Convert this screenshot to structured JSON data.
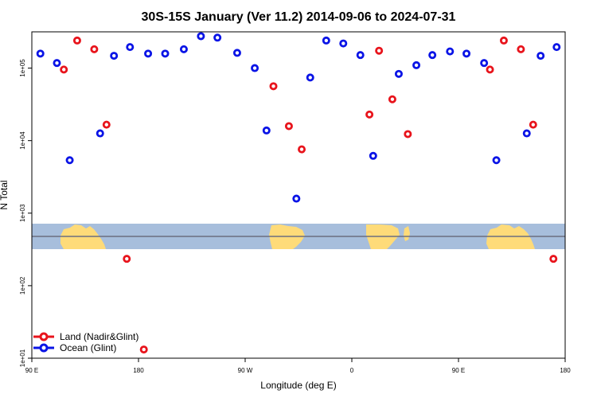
{
  "colors": {
    "land": "#e8141c",
    "ocean": "#0a14e6",
    "map_water": "#a7bedc",
    "map_land": "#fedb79",
    "equator_line": "#6b6f80"
  },
  "chart_data": {
    "type": "scatter",
    "title": "30S-15S January (Ver 11.2)   2014-09-06 to 2024-07-31",
    "xlabel": "Longitude (deg E)",
    "ylabel": "N Total",
    "x_axis": "Longitude, repeating from 90 E eastward through 180 to 180 (two laps)",
    "xlim": [
      0,
      1.0
    ],
    "ylim_log10": [
      1,
      5.5
    ],
    "y_scale": "log",
    "x_ticks": [
      {
        "pos": 0.0,
        "label": "90 E"
      },
      {
        "pos": 0.2,
        "label": "180"
      },
      {
        "pos": 0.4,
        "label": "90 W"
      },
      {
        "pos": 0.6,
        "label": "0"
      },
      {
        "pos": 0.8,
        "label": "90 E"
      },
      {
        "pos": 1.0,
        "label": "180"
      }
    ],
    "y_ticks": [
      {
        "value_log10": 1,
        "label": "1e+01"
      },
      {
        "value_log10": 2,
        "label": "1e+02"
      },
      {
        "value_log10": 3,
        "label": "1e+03"
      },
      {
        "value_log10": 4,
        "label": "1e+04"
      },
      {
        "value_log10": 5,
        "label": "1e+05"
      }
    ],
    "series": [
      {
        "name": "Land (Nadir&Glint)",
        "color_key": "land",
        "points": [
          {
            "x": 0.06,
            "y_log10": 4.98
          },
          {
            "x": 0.085,
            "y_log10": 5.38
          },
          {
            "x": 0.117,
            "y_log10": 5.26
          },
          {
            "x": 0.14,
            "y_log10": 4.22
          },
          {
            "x": 0.178,
            "y_log10": 2.37
          },
          {
            "x": 0.21,
            "y_log10": 1.12
          },
          {
            "x": 0.453,
            "y_log10": 4.75
          },
          {
            "x": 0.482,
            "y_log10": 4.2
          },
          {
            "x": 0.506,
            "y_log10": 3.88
          },
          {
            "x": 0.633,
            "y_log10": 4.36
          },
          {
            "x": 0.651,
            "y_log10": 5.24
          },
          {
            "x": 0.676,
            "y_log10": 4.57
          },
          {
            "x": 0.705,
            "y_log10": 4.09
          },
          {
            "x": 0.859,
            "y_log10": 4.98
          },
          {
            "x": 0.885,
            "y_log10": 5.38
          },
          {
            "x": 0.917,
            "y_log10": 5.26
          },
          {
            "x": 0.94,
            "y_log10": 4.22
          },
          {
            "x": 0.978,
            "y_log10": 2.37
          }
        ]
      },
      {
        "name": "Ocean (Glint)",
        "color_key": "ocean",
        "points": [
          {
            "x": 0.016,
            "y_log10": 5.2
          },
          {
            "x": 0.047,
            "y_log10": 5.07
          },
          {
            "x": 0.071,
            "y_log10": 3.73
          },
          {
            "x": 0.128,
            "y_log10": 4.1
          },
          {
            "x": 0.154,
            "y_log10": 5.17
          },
          {
            "x": 0.184,
            "y_log10": 5.29
          },
          {
            "x": 0.218,
            "y_log10": 5.2
          },
          {
            "x": 0.25,
            "y_log10": 5.2
          },
          {
            "x": 0.285,
            "y_log10": 5.26
          },
          {
            "x": 0.317,
            "y_log10": 5.44
          },
          {
            "x": 0.348,
            "y_log10": 5.42
          },
          {
            "x": 0.385,
            "y_log10": 5.21
          },
          {
            "x": 0.418,
            "y_log10": 5.0
          },
          {
            "x": 0.44,
            "y_log10": 4.14
          },
          {
            "x": 0.496,
            "y_log10": 3.2
          },
          {
            "x": 0.522,
            "y_log10": 4.87
          },
          {
            "x": 0.552,
            "y_log10": 5.38
          },
          {
            "x": 0.584,
            "y_log10": 5.34
          },
          {
            "x": 0.616,
            "y_log10": 5.18
          },
          {
            "x": 0.64,
            "y_log10": 3.79
          },
          {
            "x": 0.688,
            "y_log10": 4.92
          },
          {
            "x": 0.721,
            "y_log10": 5.04
          },
          {
            "x": 0.751,
            "y_log10": 5.18
          },
          {
            "x": 0.784,
            "y_log10": 5.23
          },
          {
            "x": 0.815,
            "y_log10": 5.2
          },
          {
            "x": 0.848,
            "y_log10": 5.07
          },
          {
            "x": 0.871,
            "y_log10": 3.73
          },
          {
            "x": 0.928,
            "y_log10": 4.1
          },
          {
            "x": 0.954,
            "y_log10": 5.17
          },
          {
            "x": 0.984,
            "y_log10": 5.29
          }
        ]
      }
    ],
    "legend": {
      "position": "bottom-left",
      "entries": [
        {
          "label": "Land (Nadir&Glint)",
          "color_key": "land"
        },
        {
          "label": "Ocean (Glint)",
          "color_key": "ocean"
        }
      ]
    },
    "map_band": {
      "description": "world map strip (30S-15S) with equator reference line",
      "y_top_log10": 2.88,
      "y_bottom_log10": 2.51,
      "line_log10": 2.58
    }
  }
}
